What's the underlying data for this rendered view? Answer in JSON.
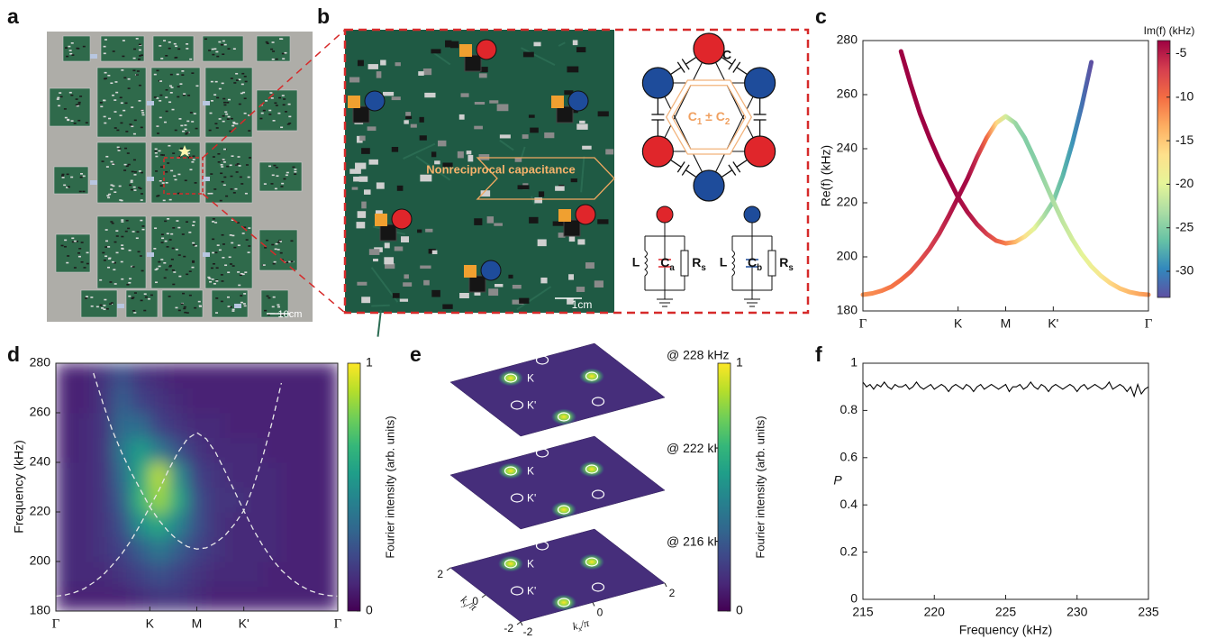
{
  "panel_labels": [
    "a",
    "b",
    "c",
    "d",
    "e",
    "f"
  ],
  "panel_a": {
    "scale_bar": "10cm"
  },
  "panel_b": {
    "annotation": "Nonreciprocal capacitance",
    "scale_bar": "1cm",
    "coupling": "C",
    "nonreciprocal": [
      {
        "text": "C",
        "sub": "1"
      },
      {
        "text": " ± C",
        "sub": "2"
      }
    ],
    "inductor": "L",
    "capacitor_a": {
      "text": "C",
      "sub": "a"
    },
    "capacitor_b": {
      "text": "C",
      "sub": "b"
    },
    "resistor": {
      "text": "R",
      "sub": "s"
    }
  },
  "chart_data": [
    {
      "type": "scatter",
      "ylabel": "Re(f) (kHz)",
      "x": [
        0,
        0.1,
        0.2,
        0.3,
        0.4,
        0.5,
        0.6,
        0.7,
        0.8,
        0.9,
        1,
        1.1,
        1.2,
        1.3,
        1.4,
        1.5,
        1.6,
        1.7,
        1.8,
        1.9,
        2,
        2.1,
        2.2,
        2.3,
        2.4,
        2.5,
        2.6,
        2.7,
        2.8,
        2.9,
        3
      ],
      "series": [
        {
          "values": [
            null,
            null,
            null,
            null,
            276,
            264,
            253,
            244,
            236,
            229,
            222,
            216.5,
            212,
            208.5,
            206,
            205,
            205.5,
            207.5,
            210.5,
            215,
            220.5,
            230,
            242,
            256,
            272,
            null,
            null,
            null,
            null,
            null,
            null
          ],
          "color_values": [
            null,
            null,
            null,
            null,
            -3.5,
            -3.5,
            -3.5,
            -3.5,
            -3.5,
            -3.5,
            -4,
            -4.5,
            -5.5,
            -7,
            -9,
            -11,
            -14,
            -17,
            -20,
            -23,
            -25,
            -27,
            -29,
            -31,
            -33,
            null,
            null,
            null,
            null,
            null,
            null
          ]
        },
        {
          "values": [
            186,
            186.5,
            187.5,
            189,
            191.5,
            194.5,
            198.5,
            203,
            208.5,
            215,
            222,
            229,
            237,
            244,
            249.5,
            252,
            249.5,
            244,
            236.5,
            228.5,
            220.5,
            213,
            206.5,
            201,
            196.5,
            193,
            190.3,
            188.3,
            187,
            186.3,
            186
          ],
          "color_values": [
            -12,
            -11.5,
            -11,
            -10.5,
            -10,
            -9,
            -8,
            -7,
            -6,
            -5,
            -4,
            -4,
            -6,
            -10,
            -16,
            -21,
            -24,
            -25,
            -25,
            -24,
            -23,
            -22,
            -21,
            -20,
            -19,
            -17.5,
            -16,
            -15,
            -14,
            -13,
            -12
          ]
        }
      ],
      "xlim": [
        0,
        3
      ],
      "xticks": [
        {
          "value": 0,
          "label": "Γ"
        },
        {
          "value": 1,
          "label": "K"
        },
        {
          "value": 1.5,
          "label": "M"
        },
        {
          "value": 2,
          "label": "K'"
        },
        {
          "value": 3,
          "label": "Γ"
        }
      ],
      "ylim": [
        180,
        280
      ],
      "yticks": [
        180,
        200,
        220,
        240,
        260,
        280
      ],
      "colorbar": {
        "label": "Im(f) (kHz)",
        "clim": [
          -33,
          -3.5
        ],
        "ticks": [
          -5,
          -10,
          -15,
          -20,
          -25,
          -30
        ],
        "colormap": [
          "#5e4fa2",
          "#3288bd",
          "#66c2a5",
          "#abdda4",
          "#e6f598",
          "#fee08b",
          "#fdae61",
          "#f46d43",
          "#d53e4f",
          "#9e0142"
        ]
      }
    },
    {
      "type": "heatmap",
      "ylabel": "Frequency (kHz)",
      "x": [
        0.1,
        0.3,
        0.5,
        0.7,
        0.9,
        1.1,
        1.3,
        1.5,
        1.7,
        1.9,
        2.1,
        2.3,
        2.5,
        2.7,
        2.9
      ],
      "y": [
        185,
        195,
        205,
        215,
        225,
        235,
        245,
        255,
        265,
        275
      ],
      "z": [
        [
          0.1,
          0.1,
          0.1,
          0.1,
          0.12,
          0.15,
          0.15,
          0.12,
          0.1,
          0.1,
          0.1,
          0.1,
          0.1,
          0.1,
          0.1
        ],
        [
          0.12,
          0.12,
          0.12,
          0.15,
          0.2,
          0.25,
          0.2,
          0.15,
          0.12,
          0.12,
          0.12,
          0.1,
          0.1,
          0.1,
          0.1
        ],
        [
          0.12,
          0.12,
          0.15,
          0.2,
          0.3,
          0.4,
          0.3,
          0.2,
          0.15,
          0.12,
          0.12,
          0.12,
          0.1,
          0.1,
          0.1
        ],
        [
          0.12,
          0.12,
          0.15,
          0.25,
          0.5,
          0.6,
          0.45,
          0.25,
          0.15,
          0.12,
          0.12,
          0.12,
          0.1,
          0.1,
          0.1
        ],
        [
          0.12,
          0.12,
          0.15,
          0.3,
          0.65,
          0.85,
          0.6,
          0.25,
          0.15,
          0.15,
          0.12,
          0.12,
          0.1,
          0.1,
          0.1
        ],
        [
          0.12,
          0.12,
          0.15,
          0.35,
          0.6,
          0.9,
          0.5,
          0.2,
          0.15,
          0.12,
          0.12,
          0.12,
          0.1,
          0.1,
          0.1
        ],
        [
          0.1,
          0.12,
          0.15,
          0.4,
          0.55,
          0.4,
          0.25,
          0.15,
          0.12,
          0.12,
          0.12,
          0.1,
          0.1,
          0.1,
          0.1
        ],
        [
          0.1,
          0.12,
          0.15,
          0.35,
          0.35,
          0.2,
          0.15,
          0.12,
          0.12,
          0.1,
          0.1,
          0.1,
          0.1,
          0.1,
          0.1
        ],
        [
          0.1,
          0.1,
          0.15,
          0.3,
          0.2,
          0.15,
          0.12,
          0.1,
          0.1,
          0.1,
          0.1,
          0.1,
          0.1,
          0.1,
          0.1
        ],
        [
          0.1,
          0.1,
          0.15,
          0.25,
          0.15,
          0.12,
          0.1,
          0.1,
          0.1,
          0.1,
          0.1,
          0.1,
          0.1,
          0.1,
          0.1
        ]
      ],
      "xlim": [
        0,
        3
      ],
      "xticks": [
        {
          "value": 0,
          "label": "Γ"
        },
        {
          "value": 1,
          "label": "K"
        },
        {
          "value": 1.5,
          "label": "M"
        },
        {
          "value": 2,
          "label": "K'"
        },
        {
          "value": 3,
          "label": "Γ"
        }
      ],
      "ylim": [
        180,
        280
      ],
      "yticks": [
        180,
        200,
        220,
        240,
        260,
        280
      ],
      "colorbar": {
        "label": "Fourier intensity (arb. units)",
        "clim": [
          0,
          1
        ],
        "ticks": [
          0,
          1
        ],
        "colormap": [
          "#440154",
          "#482878",
          "#3e4989",
          "#31688e",
          "#26828e",
          "#1f9e89",
          "#35b779",
          "#6ece58",
          "#b5de2b",
          "#fde725"
        ]
      }
    },
    {
      "type": "line",
      "xlabel": "Frequency (kHz)",
      "ylabel": "P",
      "color": "#000000",
      "x": [
        215,
        215.25,
        215.5,
        215.75,
        216,
        216.25,
        216.5,
        216.75,
        217,
        217.25,
        217.5,
        217.75,
        218,
        218.25,
        218.5,
        218.75,
        219,
        219.25,
        219.5,
        219.75,
        220,
        220.25,
        220.5,
        220.75,
        221,
        221.25,
        221.5,
        221.75,
        222,
        222.25,
        222.5,
        222.75,
        223,
        223.25,
        223.5,
        223.75,
        224,
        224.25,
        224.5,
        224.75,
        225,
        225.25,
        225.5,
        225.75,
        226,
        226.25,
        226.5,
        226.75,
        227,
        227.25,
        227.5,
        227.75,
        228,
        228.25,
        228.5,
        228.75,
        229,
        229.25,
        229.5,
        229.75,
        230,
        230.25,
        230.5,
        230.75,
        231,
        231.25,
        231.5,
        231.75,
        232,
        232.25,
        232.5,
        232.75,
        233,
        233.25,
        233.5,
        233.75,
        234,
        234.25,
        234.5,
        234.75,
        235
      ],
      "values": [
        0.92,
        0.9,
        0.91,
        0.89,
        0.91,
        0.9,
        0.92,
        0.9,
        0.89,
        0.91,
        0.9,
        0.9,
        0.91,
        0.89,
        0.9,
        0.92,
        0.9,
        0.89,
        0.9,
        0.91,
        0.89,
        0.9,
        0.91,
        0.9,
        0.88,
        0.9,
        0.91,
        0.9,
        0.89,
        0.91,
        0.9,
        0.88,
        0.9,
        0.91,
        0.89,
        0.9,
        0.91,
        0.9,
        0.89,
        0.9,
        0.91,
        0.88,
        0.9,
        0.9,
        0.91,
        0.89,
        0.9,
        0.92,
        0.9,
        0.89,
        0.91,
        0.9,
        0.88,
        0.9,
        0.91,
        0.9,
        0.89,
        0.9,
        0.91,
        0.9,
        0.88,
        0.9,
        0.91,
        0.89,
        0.9,
        0.91,
        0.9,
        0.89,
        0.9,
        0.92,
        0.89,
        0.9,
        0.91,
        0.9,
        0.88,
        0.9,
        0.86,
        0.91,
        0.87,
        0.89,
        0.9
      ],
      "xlim": [
        215,
        235
      ],
      "xticks": [
        215,
        220,
        225,
        230,
        235
      ],
      "ylim": [
        0,
        1
      ],
      "yticks": [
        0,
        0.2,
        0.4,
        0.6,
        0.8,
        1
      ]
    }
  ],
  "panel_e": {
    "layers": [
      {
        "label": "@ 228 kHz"
      },
      {
        "label": "@ 222 kHz"
      },
      {
        "label": "@ 216 kHz"
      }
    ],
    "k_label": "K",
    "kprime_label": "K'",
    "xlabel": {
      "text": "k",
      "sub": "x",
      "rest": "/π"
    },
    "ylabel": {
      "text": "k",
      "sub": "y",
      "rest": "/π"
    },
    "xlim": [
      -2,
      2
    ],
    "ylim": [
      -2,
      2
    ],
    "xticks": [
      -2,
      0,
      2
    ],
    "yticks": [
      -2,
      0,
      2
    ],
    "colorbar": {
      "label": "Fourier intensity (arb. units)",
      "clim": [
        0,
        1
      ],
      "ticks": [
        0,
        1
      ]
    }
  }
}
